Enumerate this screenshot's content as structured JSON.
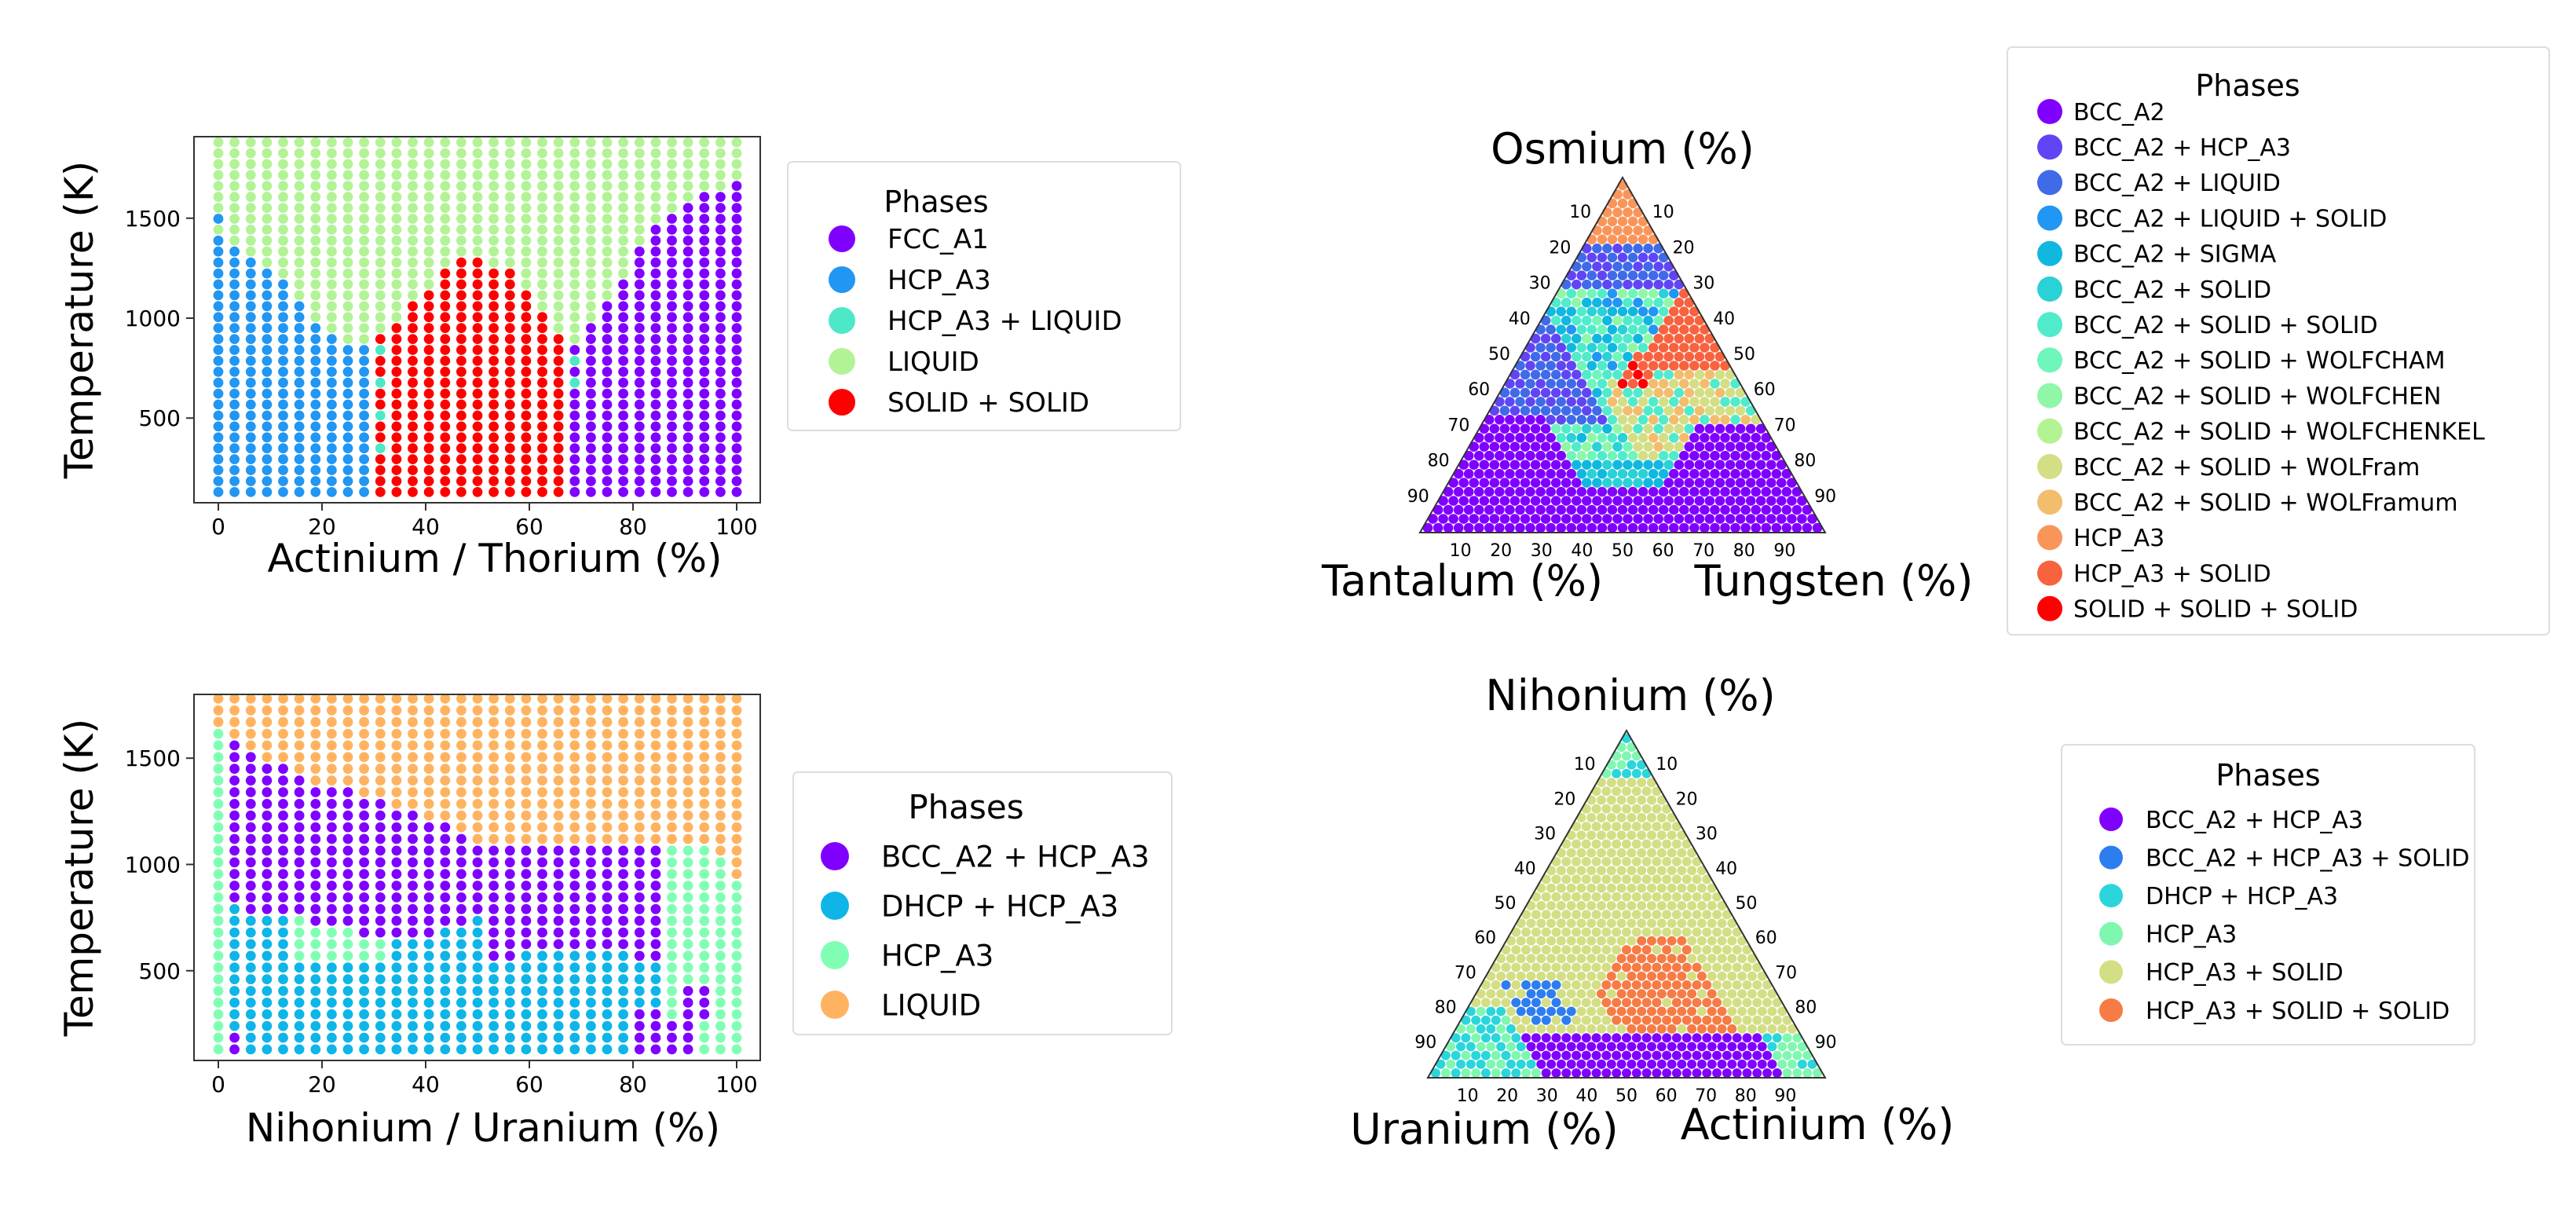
{
  "chart_data": [
    {
      "id": "binary_1",
      "type": "scatter",
      "subtype": "binary-phase-diagram",
      "xlabel": "Actinium / Thorium (%)",
      "ylabel": "Temperature (K)",
      "xlim": [
        0,
        100
      ],
      "ylim": [
        100,
        1900
      ],
      "xticks": [
        0,
        20,
        40,
        60,
        80,
        100
      ],
      "yticks": [
        500,
        1000,
        1500
      ],
      "grid": {
        "x_count": 33,
        "y_count": 33
      },
      "legend": {
        "title": "Phases",
        "entries": [
          {
            "label": "FCC_A1",
            "color": "#8000ff"
          },
          {
            "label": "HCP_A3",
            "color": "#2196f3"
          },
          {
            "label": "HCP_A3 + LIQUID",
            "color": "#4de8c7"
          },
          {
            "label": "LIQUID",
            "color": "#b2f396"
          },
          {
            "label": "SOLID + SOLID",
            "color": "#ff0000"
          }
        ]
      },
      "regions": {
        "HCP_A3": {
          "x": [
            0,
            29
          ],
          "top": [
            [
              0,
              1400
            ],
            [
              5,
              1300
            ],
            [
              12,
              1200
            ],
            [
              18,
              1000
            ],
            [
              24,
              870
            ],
            [
              29,
              870
            ]
          ]
        },
        "SOLID + SOLID": {
          "x": [
            30,
            68
          ],
          "top": [
            [
              30,
              870
            ],
            [
              35,
              1000
            ],
            [
              40,
              1150
            ],
            [
              45,
              1300
            ],
            [
              50,
              1300
            ],
            [
              55,
              1250
            ],
            [
              60,
              1150
            ],
            [
              64,
              1000
            ],
            [
              68,
              870
            ]
          ]
        },
        "FCC_A1": {
          "x": [
            69,
            100
          ],
          "top": [
            [
              69,
              870
            ],
            [
              72,
              1000
            ],
            [
              78,
              1200
            ],
            [
              84,
              1450
            ],
            [
              90,
              1600
            ],
            [
              96,
              1650
            ],
            [
              100,
              1700
            ]
          ]
        },
        "HCP_A3 + LIQUID": {
          "x": [
            30,
            33
          ],
          "band": [
            [
              30,
              850
            ],
            [
              33,
              250
            ]
          ]
        },
        "LIQUID": "remaining"
      }
    },
    {
      "id": "ternary_1",
      "type": "scatter",
      "subtype": "ternary-phase-diagram",
      "top_label": "Osmium (%)",
      "left_label": "Tantalum (%)",
      "right_label": "Tungsten (%)",
      "ticks": [
        10,
        20,
        30,
        40,
        50,
        60,
        70,
        80,
        90
      ],
      "legend": {
        "title": "Phases",
        "entries": [
          {
            "label": "BCC_A2",
            "color": "#8000ff"
          },
          {
            "label": "BCC_A2 + HCP_A3",
            "color": "#6045f5"
          },
          {
            "label": "BCC_A2 + LIQUID",
            "color": "#3f6ae8"
          },
          {
            "label": "BCC_A2 + LIQUID + SOLID",
            "color": "#2196f3"
          },
          {
            "label": "BCC_A2 + SIGMA",
            "color": "#10b8e0"
          },
          {
            "label": "BCC_A2 + SOLID",
            "color": "#2ad1d6"
          },
          {
            "label": "BCC_A2 + SOLID + SOLID",
            "color": "#50ebcb"
          },
          {
            "label": "BCC_A2 + SOLID + WOLFCHAM",
            "color": "#70f5bb"
          },
          {
            "label": "BCC_A2 + SOLID + WOLFCHEN",
            "color": "#90f7a8"
          },
          {
            "label": "BCC_A2 + SOLID + WOLFCHENKEL",
            "color": "#b2f394"
          },
          {
            "label": "BCC_A2 + SOLID + WOLFram",
            "color": "#d4de84"
          },
          {
            "label": "BCC_A2 + SOLID + WOLFramum",
            "color": "#f2bd6d"
          },
          {
            "label": "HCP_A3",
            "color": "#fa955a"
          },
          {
            "label": "HCP_A3 + SOLID",
            "color": "#f8623f"
          },
          {
            "label": "SOLID + SOLID + SOLID",
            "color": "#ff0000"
          }
        ]
      }
    },
    {
      "id": "binary_2",
      "type": "scatter",
      "subtype": "binary-phase-diagram",
      "xlabel": "Nihonium / Uranium (%)",
      "ylabel": "Temperature (K)",
      "xlim": [
        0,
        100
      ],
      "ylim": [
        100,
        1800
      ],
      "xticks": [
        0,
        20,
        40,
        60,
        80,
        100
      ],
      "yticks": [
        500,
        1000,
        1500
      ],
      "grid": {
        "x_count": 33,
        "y_count": 31
      },
      "legend": {
        "title": "Phases",
        "entries": [
          {
            "label": "BCC_A2 + HCP_A3",
            "color": "#8000ff"
          },
          {
            "label": "DHCP + HCP_A3",
            "color": "#0eb5e8"
          },
          {
            "label": "HCP_A3",
            "color": "#80ffb4"
          },
          {
            "label": "LIQUID",
            "color": "#ffb360"
          }
        ]
      }
    },
    {
      "id": "ternary_2",
      "type": "scatter",
      "subtype": "ternary-phase-diagram",
      "top_label": "Nihonium (%)",
      "left_label": "Uranium (%)",
      "right_label": "Actinium (%)",
      "ticks": [
        10,
        20,
        30,
        40,
        50,
        60,
        70,
        80,
        90
      ],
      "legend": {
        "title": "Phases",
        "entries": [
          {
            "label": "BCC_A2 + HCP_A3",
            "color": "#8000ff"
          },
          {
            "label": "BCC_A2 + HCP_A3 + SOLID",
            "color": "#2d7df0"
          },
          {
            "label": "DHCP + HCP_A3",
            "color": "#2ad6dc"
          },
          {
            "label": "HCP_A3",
            "color": "#80f7b0"
          },
          {
            "label": "HCP_A3 + SOLID",
            "color": "#d4de84"
          },
          {
            "label": "HCP_A3 + SOLID + SOLID",
            "color": "#f77b45"
          }
        ]
      }
    }
  ]
}
